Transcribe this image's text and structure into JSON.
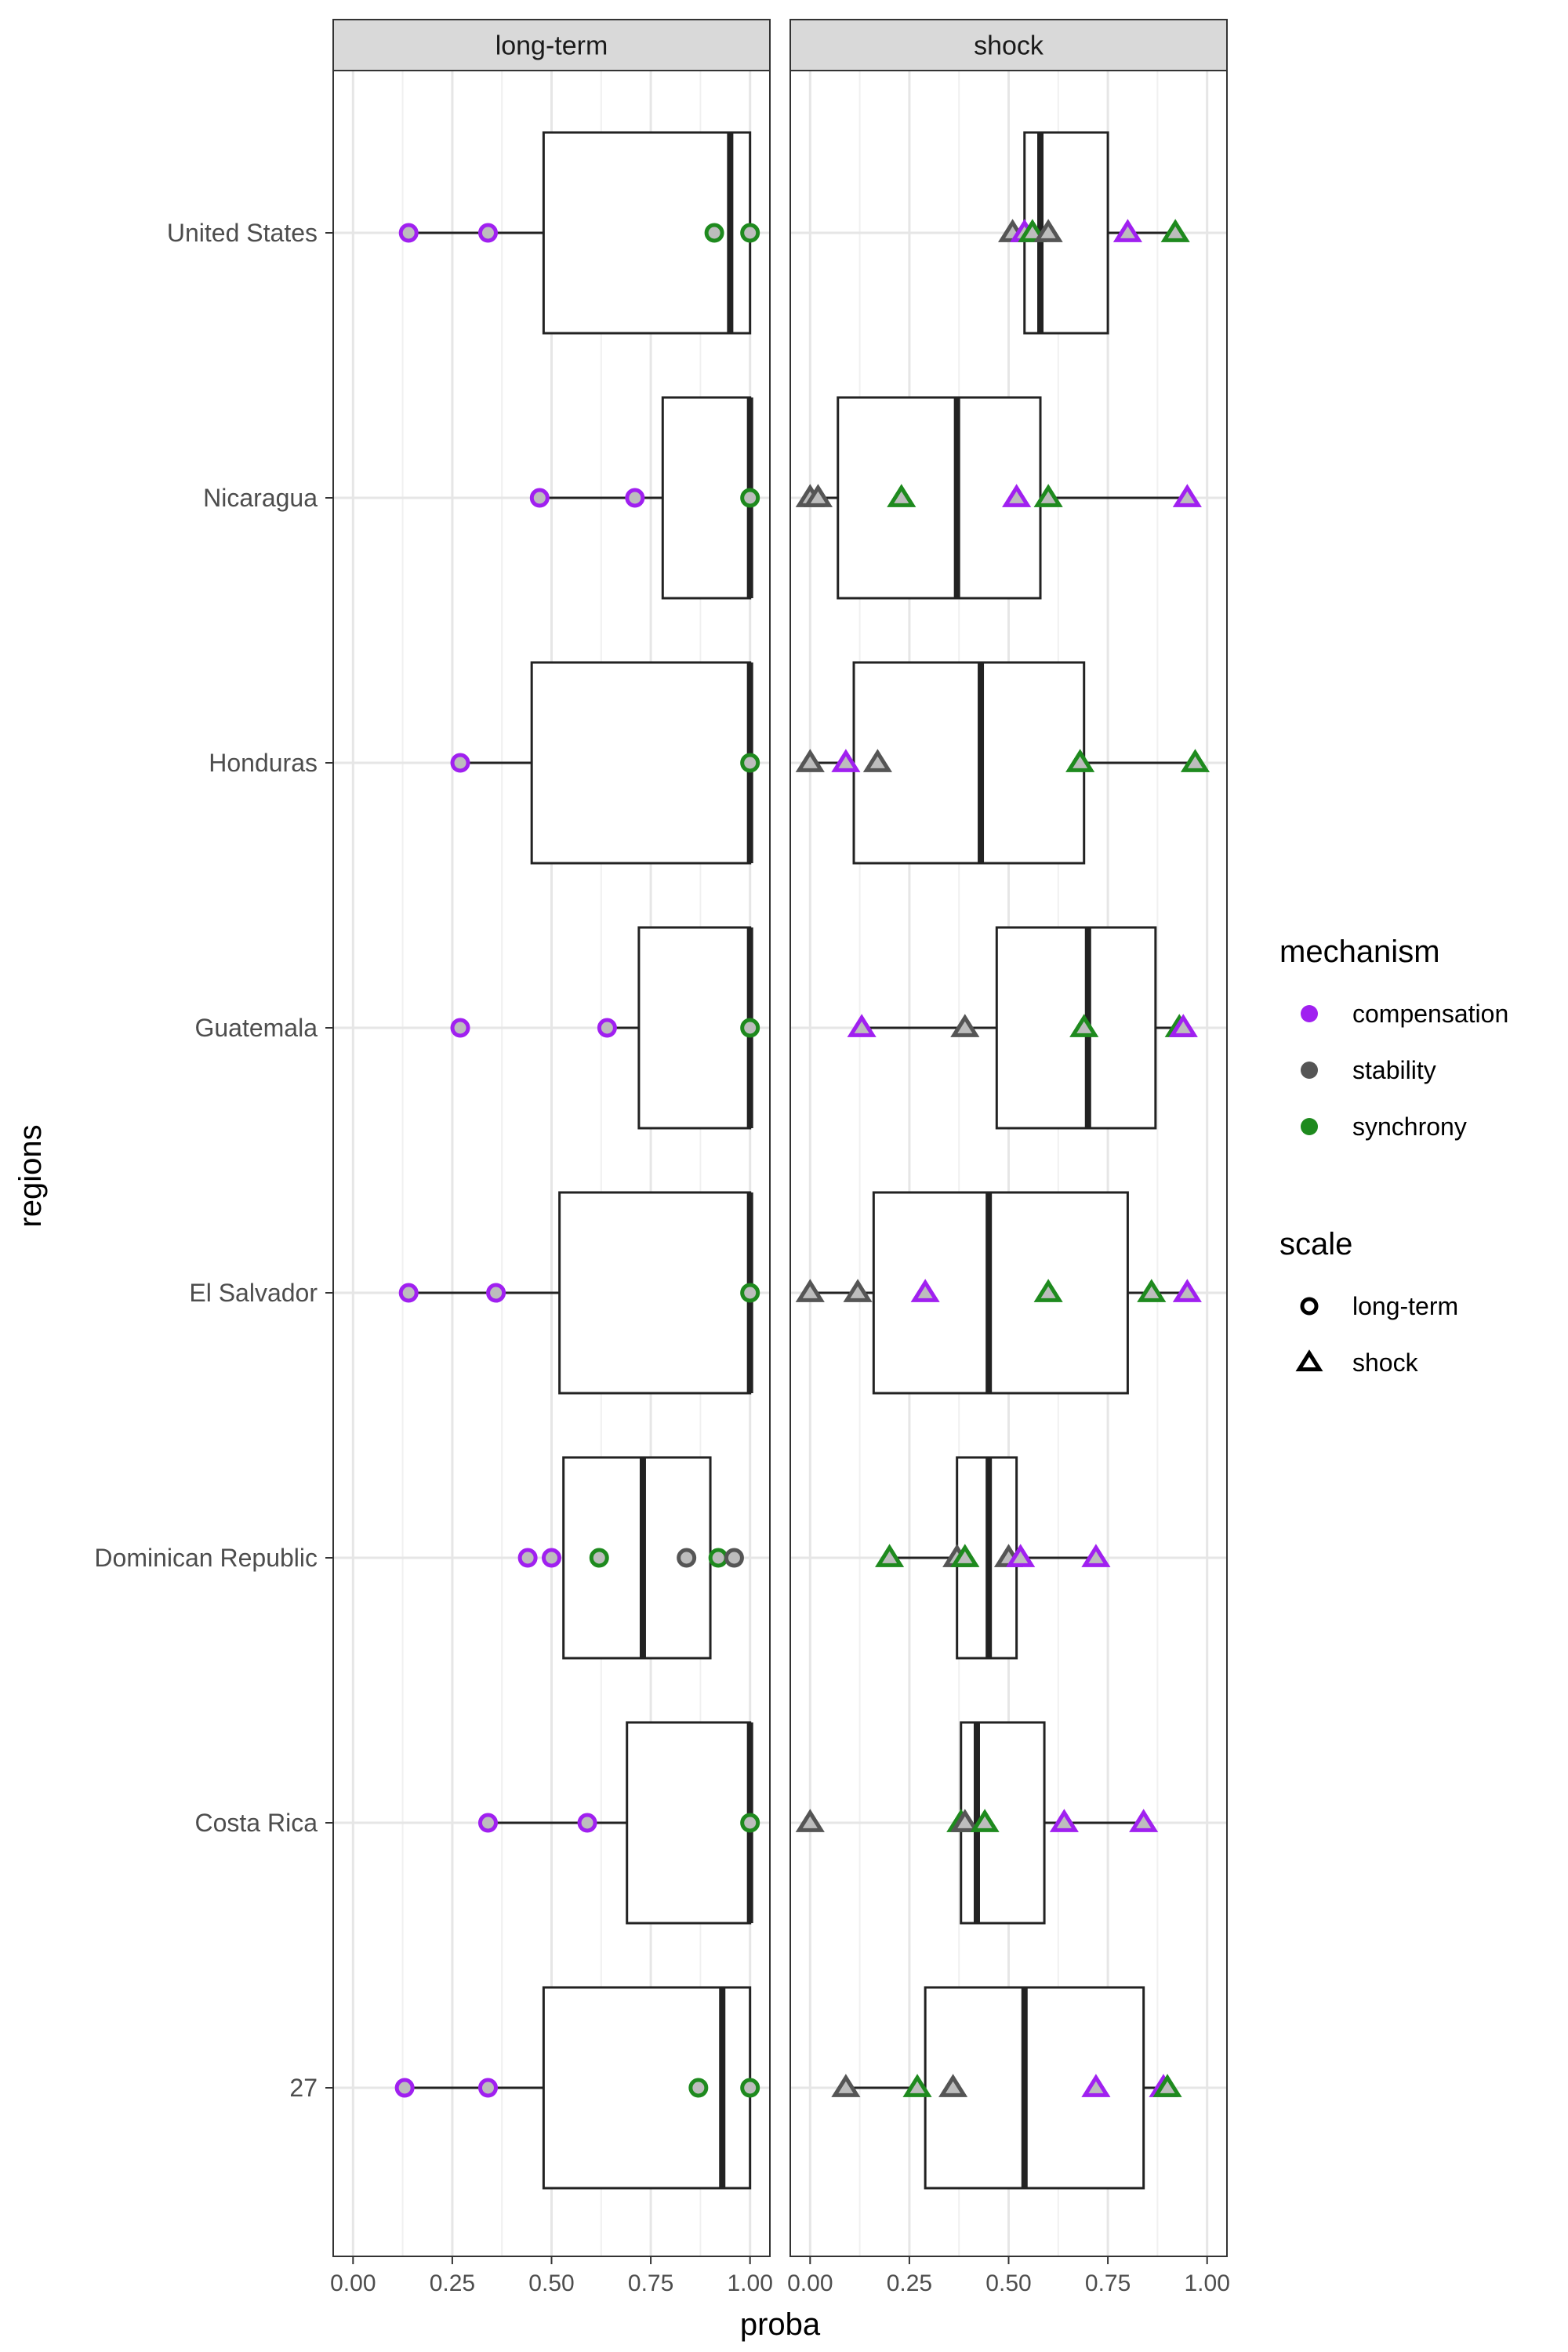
{
  "chart_data": {
    "type": "boxplot",
    "xlabel": "proba",
    "ylabel": "regions",
    "xlim": [
      -0.05,
      1.05
    ],
    "xticks": [
      "0.00",
      "0.25",
      "0.50",
      "0.75",
      "1.00"
    ],
    "grid": true,
    "colors": {
      "compensation": "#a020f0",
      "stability": "#555555",
      "synchrony": "#1e8a1e"
    },
    "categories": [
      "United States",
      "Nicaragua",
      "Honduras",
      "Guatemala",
      "El Salvador",
      "Dominican Republic",
      "Costa Rica",
      "27"
    ],
    "panels": [
      {
        "name": "long-term",
        "boxes": [
          {
            "region": "United States",
            "lo": 0.14,
            "q1": 0.48,
            "med": 0.95,
            "q3": 1.0,
            "hi": 1.0
          },
          {
            "region": "Nicaragua",
            "lo": 0.47,
            "q1": 0.78,
            "med": 1.0,
            "q3": 1.0,
            "hi": 1.0
          },
          {
            "region": "Honduras",
            "lo": 0.27,
            "q1": 0.45,
            "med": 1.0,
            "q3": 1.0,
            "hi": 1.0
          },
          {
            "region": "Guatemala",
            "lo": 0.64,
            "q1": 0.72,
            "med": 1.0,
            "q3": 1.0,
            "hi": 1.0
          },
          {
            "region": "El Salvador",
            "lo": 0.14,
            "q1": 0.52,
            "med": 1.0,
            "q3": 1.0,
            "hi": 1.0
          },
          {
            "region": "Dominican Republic",
            "lo": 0.53,
            "q1": 0.53,
            "med": 0.73,
            "q3": 0.9,
            "hi": 0.9
          },
          {
            "region": "Costa Rica",
            "lo": 0.34,
            "q1": 0.69,
            "med": 1.0,
            "q3": 1.0,
            "hi": 1.0
          },
          {
            "region": "27",
            "lo": 0.13,
            "q1": 0.48,
            "med": 0.93,
            "q3": 1.0,
            "hi": 1.0
          }
        ],
        "points": [
          {
            "region": "United States",
            "x": 0.14,
            "mechanism": "compensation"
          },
          {
            "region": "United States",
            "x": 0.34,
            "mechanism": "compensation"
          },
          {
            "region": "United States",
            "x": 0.91,
            "mechanism": "synchrony"
          },
          {
            "region": "United States",
            "x": 1.0,
            "mechanism": "synchrony"
          },
          {
            "region": "Nicaragua",
            "x": 0.47,
            "mechanism": "compensation"
          },
          {
            "region": "Nicaragua",
            "x": 0.71,
            "mechanism": "compensation"
          },
          {
            "region": "Nicaragua",
            "x": 1.0,
            "mechanism": "synchrony"
          },
          {
            "region": "Honduras",
            "x": 0.27,
            "mechanism": "compensation"
          },
          {
            "region": "Honduras",
            "x": 1.0,
            "mechanism": "synchrony"
          },
          {
            "region": "Guatemala",
            "x": 0.27,
            "mechanism": "compensation"
          },
          {
            "region": "Guatemala",
            "x": 0.64,
            "mechanism": "compensation"
          },
          {
            "region": "Guatemala",
            "x": 1.0,
            "mechanism": "synchrony"
          },
          {
            "region": "El Salvador",
            "x": 0.14,
            "mechanism": "compensation"
          },
          {
            "region": "El Salvador",
            "x": 0.36,
            "mechanism": "compensation"
          },
          {
            "region": "El Salvador",
            "x": 1.0,
            "mechanism": "synchrony"
          },
          {
            "region": "Dominican Republic",
            "x": 0.44,
            "mechanism": "compensation"
          },
          {
            "region": "Dominican Republic",
            "x": 0.5,
            "mechanism": "compensation"
          },
          {
            "region": "Dominican Republic",
            "x": 0.62,
            "mechanism": "synchrony"
          },
          {
            "region": "Dominican Republic",
            "x": 0.84,
            "mechanism": "stability"
          },
          {
            "region": "Dominican Republic",
            "x": 0.92,
            "mechanism": "synchrony"
          },
          {
            "region": "Dominican Republic",
            "x": 0.96,
            "mechanism": "stability"
          },
          {
            "region": "Costa Rica",
            "x": 0.34,
            "mechanism": "compensation"
          },
          {
            "region": "Costa Rica",
            "x": 0.59,
            "mechanism": "compensation"
          },
          {
            "region": "Costa Rica",
            "x": 1.0,
            "mechanism": "synchrony"
          },
          {
            "region": "27",
            "x": 0.13,
            "mechanism": "compensation"
          },
          {
            "region": "27",
            "x": 0.34,
            "mechanism": "compensation"
          },
          {
            "region": "27",
            "x": 0.87,
            "mechanism": "synchrony"
          },
          {
            "region": "27",
            "x": 1.0,
            "mechanism": "synchrony"
          }
        ]
      },
      {
        "name": "shock",
        "boxes": [
          {
            "region": "United States",
            "lo": 0.51,
            "q1": 0.54,
            "med": 0.58,
            "q3": 0.75,
            "hi": 0.92
          },
          {
            "region": "Nicaragua",
            "lo": 0.0,
            "q1": 0.07,
            "med": 0.37,
            "q3": 0.58,
            "hi": 0.95
          },
          {
            "region": "Honduras",
            "lo": 0.0,
            "q1": 0.11,
            "med": 0.43,
            "q3": 0.69,
            "hi": 0.97
          },
          {
            "region": "Guatemala",
            "lo": 0.13,
            "q1": 0.47,
            "med": 0.7,
            "q3": 0.87,
            "hi": 0.94
          },
          {
            "region": "El Salvador",
            "lo": 0.0,
            "q1": 0.16,
            "med": 0.45,
            "q3": 0.8,
            "hi": 0.95
          },
          {
            "region": "Dominican Republic",
            "lo": 0.2,
            "q1": 0.37,
            "med": 0.45,
            "q3": 0.52,
            "hi": 0.72
          },
          {
            "region": "Costa Rica",
            "lo": 0.38,
            "q1": 0.38,
            "med": 0.42,
            "q3": 0.59,
            "hi": 0.84
          },
          {
            "region": "27",
            "lo": 0.09,
            "q1": 0.29,
            "med": 0.54,
            "q3": 0.84,
            "hi": 0.9
          }
        ],
        "points": [
          {
            "region": "United States",
            "x": 0.51,
            "mechanism": "stability"
          },
          {
            "region": "United States",
            "x": 0.54,
            "mechanism": "compensation"
          },
          {
            "region": "United States",
            "x": 0.56,
            "mechanism": "synchrony"
          },
          {
            "region": "United States",
            "x": 0.6,
            "mechanism": "stability"
          },
          {
            "region": "United States",
            "x": 0.8,
            "mechanism": "compensation"
          },
          {
            "region": "United States",
            "x": 0.92,
            "mechanism": "synchrony"
          },
          {
            "region": "Nicaragua",
            "x": 0.0,
            "mechanism": "stability"
          },
          {
            "region": "Nicaragua",
            "x": 0.02,
            "mechanism": "stability"
          },
          {
            "region": "Nicaragua",
            "x": 0.23,
            "mechanism": "synchrony"
          },
          {
            "region": "Nicaragua",
            "x": 0.52,
            "mechanism": "compensation"
          },
          {
            "region": "Nicaragua",
            "x": 0.6,
            "mechanism": "synchrony"
          },
          {
            "region": "Nicaragua",
            "x": 0.95,
            "mechanism": "compensation"
          },
          {
            "region": "Honduras",
            "x": 0.0,
            "mechanism": "stability"
          },
          {
            "region": "Honduras",
            "x": 0.09,
            "mechanism": "compensation"
          },
          {
            "region": "Honduras",
            "x": 0.17,
            "mechanism": "stability"
          },
          {
            "region": "Honduras",
            "x": 0.68,
            "mechanism": "synchrony"
          },
          {
            "region": "Honduras",
            "x": 0.97,
            "mechanism": "synchrony"
          },
          {
            "region": "Guatemala",
            "x": 0.13,
            "mechanism": "compensation"
          },
          {
            "region": "Guatemala",
            "x": 0.39,
            "mechanism": "stability"
          },
          {
            "region": "Guatemala",
            "x": 0.69,
            "mechanism": "synchrony"
          },
          {
            "region": "Guatemala",
            "x": 0.93,
            "mechanism": "synchrony"
          },
          {
            "region": "Guatemala",
            "x": 0.94,
            "mechanism": "compensation"
          },
          {
            "region": "El Salvador",
            "x": 0.0,
            "mechanism": "stability"
          },
          {
            "region": "El Salvador",
            "x": 0.12,
            "mechanism": "stability"
          },
          {
            "region": "El Salvador",
            "x": 0.29,
            "mechanism": "compensation"
          },
          {
            "region": "El Salvador",
            "x": 0.6,
            "mechanism": "synchrony"
          },
          {
            "region": "El Salvador",
            "x": 0.86,
            "mechanism": "synchrony"
          },
          {
            "region": "El Salvador",
            "x": 0.95,
            "mechanism": "compensation"
          },
          {
            "region": "Dominican Republic",
            "x": 0.2,
            "mechanism": "synchrony"
          },
          {
            "region": "Dominican Republic",
            "x": 0.37,
            "mechanism": "stability"
          },
          {
            "region": "Dominican Republic",
            "x": 0.39,
            "mechanism": "synchrony"
          },
          {
            "region": "Dominican Republic",
            "x": 0.5,
            "mechanism": "stability"
          },
          {
            "region": "Dominican Republic",
            "x": 0.53,
            "mechanism": "compensation"
          },
          {
            "region": "Dominican Republic",
            "x": 0.72,
            "mechanism": "compensation"
          },
          {
            "region": "Costa Rica",
            "x": 0.0,
            "mechanism": "stability"
          },
          {
            "region": "Costa Rica",
            "x": 0.38,
            "mechanism": "synchrony"
          },
          {
            "region": "Costa Rica",
            "x": 0.39,
            "mechanism": "stability"
          },
          {
            "region": "Costa Rica",
            "x": 0.44,
            "mechanism": "synchrony"
          },
          {
            "region": "Costa Rica",
            "x": 0.64,
            "mechanism": "compensation"
          },
          {
            "region": "Costa Rica",
            "x": 0.84,
            "mechanism": "compensation"
          },
          {
            "region": "27",
            "x": 0.09,
            "mechanism": "stability"
          },
          {
            "region": "27",
            "x": 0.27,
            "mechanism": "synchrony"
          },
          {
            "region": "27",
            "x": 0.36,
            "mechanism": "stability"
          },
          {
            "region": "27",
            "x": 0.72,
            "mechanism": "compensation"
          },
          {
            "region": "27",
            "x": 0.89,
            "mechanism": "compensation"
          },
          {
            "region": "27",
            "x": 0.9,
            "mechanism": "synchrony"
          }
        ]
      }
    ],
    "legend": {
      "position": "right",
      "mechanism_title": "mechanism",
      "mechanism_items": [
        "compensation",
        "stability",
        "synchrony"
      ],
      "scale_title": "scale",
      "scale_items": [
        "long-term",
        "shock"
      ]
    }
  }
}
